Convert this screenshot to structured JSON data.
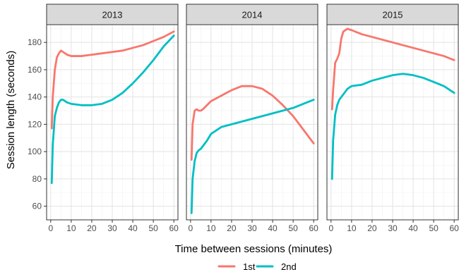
{
  "chart_data": {
    "type": "line",
    "xlabel": "Time between sessions (minutes)",
    "ylabel": "Session length (seconds)",
    "x_ticks": [
      0,
      10,
      20,
      30,
      40,
      50,
      60
    ],
    "y_ticks": [
      60,
      80,
      100,
      120,
      140,
      160,
      180
    ],
    "xlim": [
      -2,
      62
    ],
    "ylim": [
      50,
      193
    ],
    "grid": true,
    "legend_position": "bottom",
    "series_meta": [
      {
        "name": "1st",
        "color": "#f8766d"
      },
      {
        "name": "2nd",
        "color": "#00bfc4"
      }
    ],
    "panels": [
      {
        "title": "2013",
        "series": [
          {
            "name": "1st",
            "x": [
              0.5,
              1,
              2,
              3,
              4,
              5,
              6,
              8,
              10,
              15,
              20,
              25,
              30,
              35,
              40,
              45,
              50,
              55,
              60
            ],
            "y": [
              117,
              140,
              160,
              169,
              172,
              174,
              173,
              171,
              170,
              170,
              171,
              172,
              173,
              174,
              176,
              178,
              181,
              184,
              188
            ]
          },
          {
            "name": "2nd",
            "x": [
              0.5,
              1,
              2,
              3,
              4,
              5,
              6,
              8,
              10,
              15,
              20,
              25,
              30,
              35,
              40,
              45,
              50,
              55,
              60
            ],
            "y": [
              77,
              105,
              126,
              132,
              136,
              138,
              138,
              136,
              135,
              134,
              134,
              135,
              138,
              143,
              150,
              158,
              167,
              177,
              185
            ]
          }
        ]
      },
      {
        "title": "2014",
        "series": [
          {
            "name": "1st",
            "x": [
              0.5,
              1,
              2,
              3,
              4,
              5,
              6,
              8,
              10,
              15,
              20,
              25,
              30,
              35,
              40,
              45,
              50,
              55,
              60
            ],
            "y": [
              94,
              120,
              130,
              131,
              130,
              130,
              131,
              134,
              137,
              141,
              145,
              148,
              148,
              146,
              141,
              134,
              126,
              116,
              106
            ]
          },
          {
            "name": "2nd",
            "x": [
              0.5,
              1,
              2,
              3,
              4,
              5,
              6,
              8,
              10,
              15,
              20,
              25,
              30,
              35,
              40,
              45,
              50,
              55,
              60
            ],
            "y": [
              55,
              80,
              93,
              99,
              101,
              102,
              104,
              108,
              113,
              118,
              120,
              122,
              124,
              126,
              128,
              130,
              132,
              135,
              138
            ]
          }
        ]
      },
      {
        "title": "2015",
        "series": [
          {
            "name": "1st",
            "x": [
              0.5,
              1,
              2,
              3,
              4,
              5,
              6,
              8,
              10,
              15,
              20,
              25,
              30,
              35,
              40,
              45,
              50,
              55,
              60
            ],
            "y": [
              131,
              145,
              165,
              168,
              172,
              183,
              188,
              190,
              189,
              186,
              184,
              182,
              180,
              178,
              176,
              174,
              172,
              170,
              167
            ]
          },
          {
            "name": "2nd",
            "x": [
              0.5,
              1,
              2,
              3,
              4,
              5,
              6,
              8,
              10,
              15,
              20,
              25,
              30,
              35,
              40,
              45,
              50,
              55,
              60
            ],
            "y": [
              80,
              108,
              127,
              134,
              138,
              140,
              142,
              146,
              148,
              149,
              152,
              154,
              156,
              157,
              156,
              154,
              151,
              148,
              143
            ]
          }
        ]
      }
    ]
  }
}
